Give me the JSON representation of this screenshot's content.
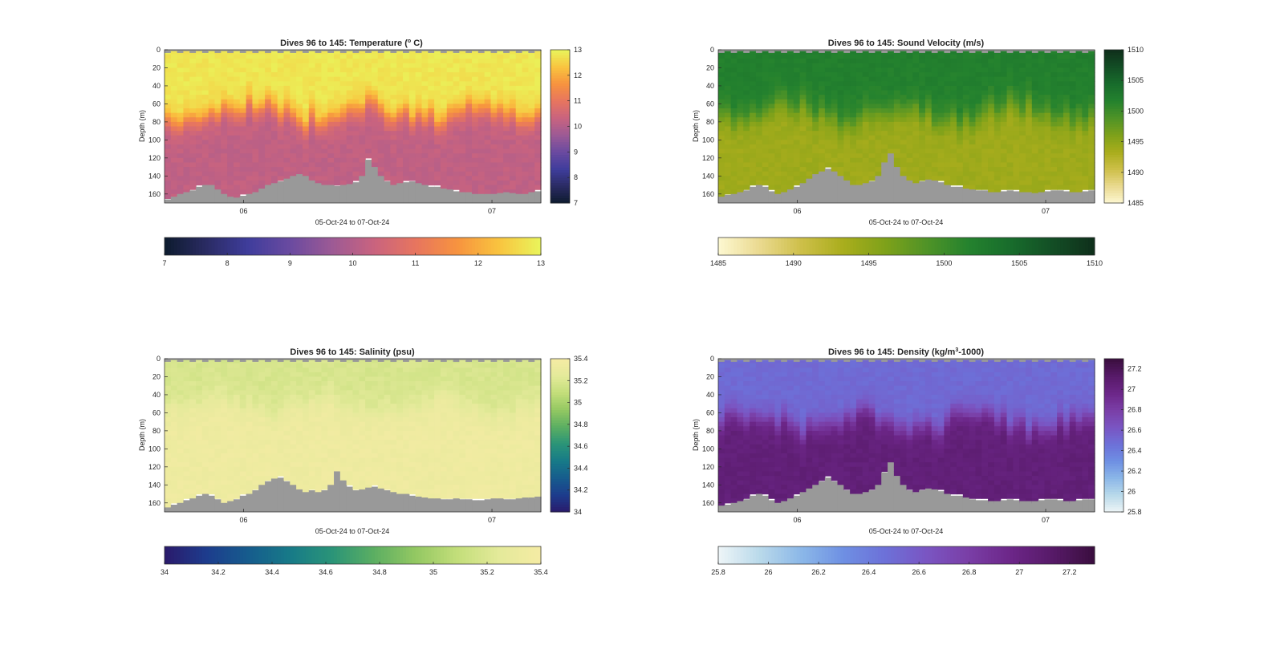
{
  "figure": {
    "background": "#ffffff",
    "section_color": "#999999",
    "axis_color": "#262626"
  },
  "chart_data": [
    {
      "type": "heatmap",
      "title": "Dives 96 to 145: Temperature (° C)",
      "title_main": "Dives 96 to 145: Temperature (",
      "title_sup": "o",
      "title_tail": " C)",
      "xlabel": "05-Oct-24 to 07-Oct-24",
      "ylabel": "Depth (m)",
      "x_ticks": [
        "06",
        "07"
      ],
      "y_ticks": [
        "0",
        "20",
        "40",
        "60",
        "80",
        "100",
        "120",
        "140",
        "160"
      ],
      "ylim": [
        0,
        170
      ],
      "clim": [
        7,
        13
      ],
      "vertical_colorbar_ticks": [
        "7",
        "8",
        "9",
        "10",
        "11",
        "12",
        "13"
      ],
      "horizontal_colorbar_ticks": [
        "7",
        "8",
        "9",
        "10",
        "11",
        "12",
        "13"
      ],
      "colormap": [
        "#0d1b2e",
        "#2a2b63",
        "#3f3d9c",
        "#6a4aa0",
        "#9c5a95",
        "#c9637f",
        "#e7755f",
        "#f7933f",
        "#f9c43f",
        "#e9f55b"
      ],
      "profile": {
        "surface": 12.8,
        "bottom": 10.2,
        "thermocline_depth": [
          55,
          85
        ],
        "thermocline_width": 25
      },
      "bottom_depth_m": [
        166,
        163,
        160,
        158,
        156,
        152,
        150,
        150,
        155,
        160,
        163,
        164,
        162,
        160,
        158,
        154,
        150,
        148,
        146,
        143,
        140,
        138,
        140,
        145,
        148,
        150,
        150,
        151,
        150,
        149,
        147,
        140,
        122,
        130,
        140,
        146,
        150,
        148,
        147,
        146,
        148,
        150,
        152,
        152,
        154,
        155,
        157,
        158,
        158,
        160,
        160,
        160,
        160,
        159,
        158,
        159,
        160,
        160,
        158,
        157
      ]
    },
    {
      "type": "heatmap",
      "title": "Dives 96 to 145: Sound Velocity (m/s)",
      "title_main": "Dives 96 to 145: Sound Velocity (m/s)",
      "title_sup": "",
      "title_tail": "",
      "xlabel": "05-Oct-24 to 07-Oct-24",
      "ylabel": "Depth (m)",
      "x_ticks": [
        "06",
        "07"
      ],
      "y_ticks": [
        "0",
        "20",
        "40",
        "60",
        "80",
        "100",
        "120",
        "140",
        "160"
      ],
      "ylim": [
        0,
        170
      ],
      "clim": [
        1485,
        1510
      ],
      "vertical_colorbar_ticks": [
        "1485",
        "1490",
        "1495",
        "1500",
        "1505",
        "1510"
      ],
      "horizontal_colorbar_ticks": [
        "1485",
        "1490",
        "1495",
        "1500",
        "1505",
        "1510"
      ],
      "colormap": [
        "#fdf8d2",
        "#ead98f",
        "#cdbf48",
        "#a9ad1c",
        "#7ea11a",
        "#4f9327",
        "#24822e",
        "#186c2c",
        "#134e25",
        "#0f2f1b"
      ],
      "profile": {
        "surface": 1502,
        "bottom": 1494,
        "thermocline_depth": [
          55,
          85
        ],
        "thermocline_width": 30
      },
      "bottom_depth_m": [
        163,
        161,
        160,
        158,
        156,
        152,
        150,
        152,
        157,
        160,
        158,
        155,
        152,
        148,
        143,
        138,
        135,
        132,
        135,
        140,
        145,
        150,
        150,
        148,
        146,
        140,
        125,
        115,
        130,
        140,
        145,
        148,
        146,
        144,
        145,
        147,
        150,
        152,
        152,
        154,
        155,
        156,
        156,
        158,
        158,
        157,
        156,
        157,
        158,
        158,
        159,
        158,
        157,
        156,
        156,
        157,
        158,
        158,
        157,
        156
      ]
    },
    {
      "type": "heatmap",
      "title": "Dives 96 to 145: Salinity (psu)",
      "title_main": "Dives 96 to 145: Salinity (psu)",
      "title_sup": "",
      "title_tail": "",
      "xlabel": "05-Oct-24 to 07-Oct-24",
      "ylabel": "Depth (m)",
      "x_ticks": [
        "06",
        "07"
      ],
      "y_ticks": [
        "0",
        "20",
        "40",
        "60",
        "80",
        "100",
        "120",
        "140",
        "160"
      ],
      "ylim": [
        0,
        170
      ],
      "clim": [
        34,
        35.4
      ],
      "vertical_colorbar_ticks": [
        "34",
        "34.2",
        "34.4",
        "34.6",
        "34.8",
        "35",
        "35.2",
        "35.4"
      ],
      "horizontal_colorbar_ticks": [
        "34",
        "34.2",
        "34.4",
        "34.6",
        "34.8",
        "35",
        "35.2",
        "35.4"
      ],
      "colormap": [
        "#2a1a6b",
        "#1d3c8d",
        "#165c8d",
        "#177a88",
        "#2a9478",
        "#5bae62",
        "#93c862",
        "#c3de7a",
        "#e4ea9a",
        "#f5eba4"
      ],
      "profile": {
        "surface": 35.18,
        "bottom": 35.34,
        "thermocline_depth": [
          40,
          65
        ],
        "thermocline_width": 30
      },
      "bottom_depth_m": [
        165,
        162,
        160,
        157,
        155,
        152,
        150,
        152,
        156,
        160,
        158,
        156,
        152,
        150,
        146,
        140,
        136,
        133,
        132,
        136,
        140,
        145,
        148,
        146,
        148,
        146,
        140,
        125,
        135,
        142,
        146,
        145,
        143,
        142,
        144,
        146,
        148,
        150,
        150,
        152,
        153,
        154,
        155,
        155,
        156,
        156,
        155,
        156,
        156,
        157,
        157,
        156,
        155,
        155,
        156,
        156,
        155,
        154,
        154,
        153
      ]
    },
    {
      "type": "heatmap",
      "title": "Dives 96 to 145: Density (kg/m³-1000)",
      "title_main": "Dives 96 to 145: Density (kg/m",
      "title_sup": "3",
      "title_tail": "-1000)",
      "xlabel": "05-Oct-24 to 07-Oct-24",
      "ylabel": "Depth (m)",
      "x_ticks": [
        "06",
        "07"
      ],
      "y_ticks": [
        "0",
        "20",
        "40",
        "60",
        "80",
        "100",
        "120",
        "140",
        "160"
      ],
      "ylim": [
        0,
        170
      ],
      "clim": [
        25.8,
        27.3
      ],
      "vertical_colorbar_ticks": [
        "25.8",
        "26",
        "26.2",
        "26.4",
        "26.6",
        "26.8",
        "27",
        "27.2"
      ],
      "horizontal_colorbar_ticks": [
        "25.8",
        "26",
        "26.2",
        "26.4",
        "26.6",
        "26.8",
        "27",
        "27.2"
      ],
      "colormap": [
        "#eef5f7",
        "#b9d9ea",
        "#8bb7e8",
        "#6e8fe3",
        "#6d70d8",
        "#7a55c2",
        "#7a3ea6",
        "#6c2688",
        "#571a68",
        "#3a0e3e"
      ],
      "profile": {
        "surface": 26.5,
        "bottom": 27.05,
        "thermocline_depth": [
          55,
          85
        ],
        "thermocline_width": 25
      },
      "bottom_depth_m": [
        163,
        162,
        160,
        158,
        156,
        152,
        150,
        152,
        157,
        160,
        158,
        155,
        152,
        148,
        144,
        140,
        136,
        132,
        136,
        140,
        146,
        150,
        150,
        148,
        146,
        140,
        126,
        115,
        130,
        140,
        146,
        148,
        146,
        144,
        145,
        147,
        150,
        152,
        152,
        154,
        156,
        157,
        157,
        158,
        158,
        157,
        156,
        157,
        158,
        158,
        158,
        157,
        156,
        156,
        157,
        158,
        158,
        157,
        156,
        156
      ]
    }
  ]
}
